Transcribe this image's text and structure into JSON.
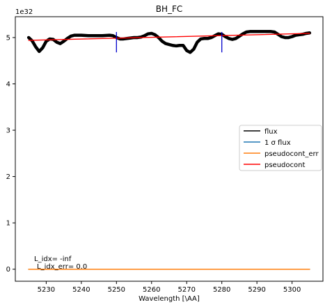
{
  "chart_data": {
    "type": "line",
    "title": "BH_FC",
    "xlabel": "Wavelength [\\AA]",
    "ylabel": "",
    "offset_text": "1e32",
    "xlim": [
      5221.2,
      5308.8
    ],
    "ylim": [
      -0.26,
      5.45
    ],
    "y_multiplier": 1e+32,
    "xticks": [
      5230,
      5240,
      5250,
      5260,
      5270,
      5280,
      5290,
      5300
    ],
    "yticks": [
      0,
      1,
      2,
      3,
      4,
      5
    ],
    "grid": false,
    "legend_position": "right",
    "legend": [
      {
        "label": "flux",
        "color": "#000000"
      },
      {
        "label": "1 σ flux",
        "color": "#1f77b4"
      },
      {
        "label": "pseudocont_err",
        "color": "#ff7f0e"
      },
      {
        "label": "pseudocont",
        "color": "#ff0000"
      }
    ],
    "series": [
      {
        "name": "flux",
        "color": "#000000",
        "x": [
          5225,
          5226,
          5227,
          5228,
          5229,
          5230,
          5231,
          5232,
          5233,
          5234,
          5235,
          5236,
          5237,
          5238,
          5239,
          5240,
          5242,
          5244,
          5246,
          5248,
          5249,
          5250,
          5251,
          5252,
          5253,
          5254,
          5255,
          5256,
          5257,
          5258,
          5259,
          5260,
          5261,
          5262,
          5263,
          5264,
          5265,
          5266,
          5267,
          5268,
          5269,
          5270,
          5271,
          5272,
          5273,
          5274,
          5275,
          5276,
          5277,
          5278,
          5279,
          5280,
          5281,
          5282,
          5283,
          5284,
          5285,
          5286,
          5287,
          5288,
          5289,
          5290,
          5292,
          5294,
          5295,
          5296,
          5297,
          5298,
          5299,
          5300,
          5301,
          5302,
          5303,
          5304,
          5305
        ],
        "y": [
          5.0,
          4.93,
          4.8,
          4.7,
          4.78,
          4.92,
          4.97,
          4.96,
          4.9,
          4.87,
          4.92,
          4.98,
          5.03,
          5.05,
          5.05,
          5.05,
          5.04,
          5.04,
          5.04,
          5.05,
          5.04,
          5.0,
          4.97,
          4.97,
          4.98,
          4.99,
          5.0,
          5.0,
          5.01,
          5.04,
          5.08,
          5.09,
          5.06,
          5.0,
          4.92,
          4.87,
          4.85,
          4.83,
          4.82,
          4.83,
          4.83,
          4.72,
          4.68,
          4.75,
          4.9,
          4.97,
          4.98,
          4.98,
          5.0,
          5.04,
          5.08,
          5.07,
          5.02,
          4.98,
          4.96,
          4.98,
          5.03,
          5.08,
          5.12,
          5.13,
          5.13,
          5.13,
          5.13,
          5.13,
          5.12,
          5.07,
          5.02,
          5.0,
          5.0,
          5.02,
          5.05,
          5.06,
          5.07,
          5.09,
          5.1
        ]
      },
      {
        "name": "1 σ flux",
        "color": "#1f77b4",
        "x": [
          5225,
          5305
        ],
        "y": [
          0.0,
          0.0
        ]
      },
      {
        "name": "pseudocont_err",
        "color": "#ff7f0e",
        "x": [
          5225,
          5305
        ],
        "y": [
          0.0,
          0.0
        ]
      },
      {
        "name": "pseudocont",
        "color": "#ff0000",
        "x": [
          5225,
          5305
        ],
        "y": [
          4.94,
          5.09
        ]
      }
    ],
    "vlines": [
      {
        "x": 5250,
        "y_range": [
          4.68,
          5.12
        ],
        "color": "#0000cc"
      },
      {
        "x": 5280,
        "y_range": [
          4.68,
          5.12
        ],
        "color": "#0000cc"
      }
    ],
    "annotations": [
      {
        "text": "L_idx= -inf"
      },
      {
        "text": "L_idx_err= 0.0"
      }
    ]
  }
}
